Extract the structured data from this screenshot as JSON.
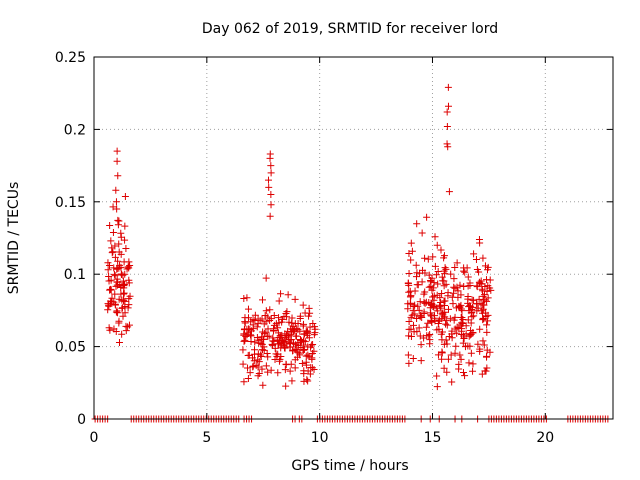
{
  "chart_data": {
    "type": "scatter",
    "title": "Day 062 of 2019, SRMTID for receiver lord",
    "xlabel": "GPS time / hours",
    "ylabel": "SRMTID / TECUs",
    "xlim": [
      0,
      23
    ],
    "ylim": [
      0,
      0.25
    ],
    "x_ticks": [
      0,
      5,
      10,
      15,
      20
    ],
    "x_tick_labels": [
      "0",
      "5",
      "10",
      "15",
      "20"
    ],
    "y_ticks": [
      0,
      0.05,
      0.1,
      0.15,
      0.2,
      0.25
    ],
    "y_tick_labels": [
      "0",
      "0.05",
      "0.1",
      "0.15",
      "0.2",
      "0.25"
    ],
    "grid": true,
    "marker": "+",
    "color": "#dd0000",
    "clusters": [
      {
        "x_range": [
          0.6,
          1.6
        ],
        "y_mean": 0.09,
        "y_sd": 0.025,
        "count": 110
      },
      {
        "x_range": [
          6.6,
          9.8
        ],
        "y_mean": 0.055,
        "y_sd": 0.014,
        "count": 260
      },
      {
        "x_range": [
          13.9,
          17.6
        ],
        "y_mean": 0.075,
        "y_sd": 0.02,
        "count": 330
      }
    ],
    "spikes": [
      {
        "x": 1.0,
        "y": [
          0.185,
          0.178,
          0.168,
          0.158,
          0.15,
          0.145
        ]
      },
      {
        "x": 7.8,
        "y": [
          0.183,
          0.18,
          0.175,
          0.17,
          0.165,
          0.16,
          0.155,
          0.148,
          0.14
        ]
      },
      {
        "x": 15.7,
        "y": [
          0.229,
          0.216,
          0.212,
          0.202,
          0.19,
          0.188,
          0.157
        ]
      }
    ],
    "zero_segments": [
      [
        0.05,
        0.7
      ],
      [
        1.65,
        6.5
      ],
      [
        6.65,
        7.0
      ],
      [
        8.8,
        9.0
      ],
      [
        9.1,
        9.3
      ],
      [
        9.9,
        13.85
      ],
      [
        14.5,
        14.6
      ],
      [
        14.9,
        15.0
      ],
      [
        15.3,
        15.4
      ],
      [
        16.0,
        16.1
      ],
      [
        16.3,
        16.4
      ],
      [
        17.0,
        17.1
      ],
      [
        17.5,
        20.1
      ],
      [
        21.0,
        22.8
      ]
    ]
  }
}
